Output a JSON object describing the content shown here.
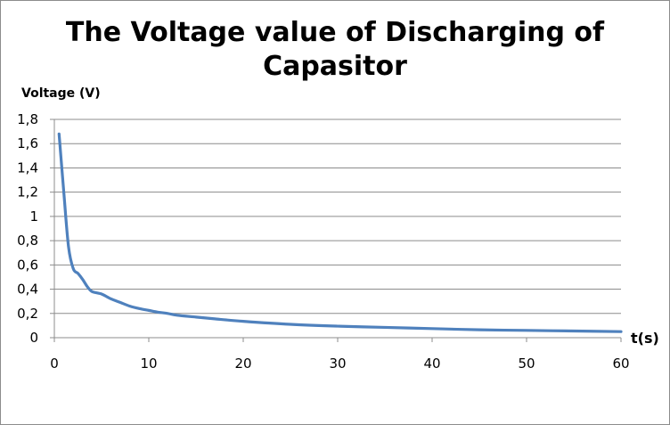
{
  "chart_data": {
    "type": "line",
    "title_lines": [
      "The Voltage value of Discharging of",
      "Capasitor"
    ],
    "ylabel": "Voltage (V)",
    "xlabel": "t(s)",
    "xlim": [
      0,
      60
    ],
    "ylim": [
      0,
      1.8
    ],
    "x_ticks": [
      "0",
      "10",
      "20",
      "30",
      "40",
      "50",
      "60"
    ],
    "y_ticks": [
      "0",
      "0,2",
      "0,4",
      "0,6",
      "0,8",
      "1",
      "1,2",
      "1,4",
      "1,6",
      "1,8"
    ],
    "grid": "horizontal",
    "legend": "none",
    "series": [
      {
        "color": "#4f81bd",
        "x": [
          0.5,
          1,
          1.5,
          2,
          2.5,
          3,
          3.5,
          4,
          5,
          6,
          7,
          8,
          9,
          10,
          11,
          12,
          13,
          15,
          17,
          20,
          25,
          30,
          35,
          40,
          45,
          50,
          55,
          60
        ],
        "y": [
          1.68,
          1.2,
          0.75,
          0.57,
          0.53,
          0.48,
          0.42,
          0.38,
          0.36,
          0.32,
          0.29,
          0.26,
          0.24,
          0.225,
          0.21,
          0.2,
          0.185,
          0.17,
          0.155,
          0.135,
          0.11,
          0.095,
          0.085,
          0.075,
          0.065,
          0.06,
          0.055,
          0.05
        ]
      }
    ]
  }
}
